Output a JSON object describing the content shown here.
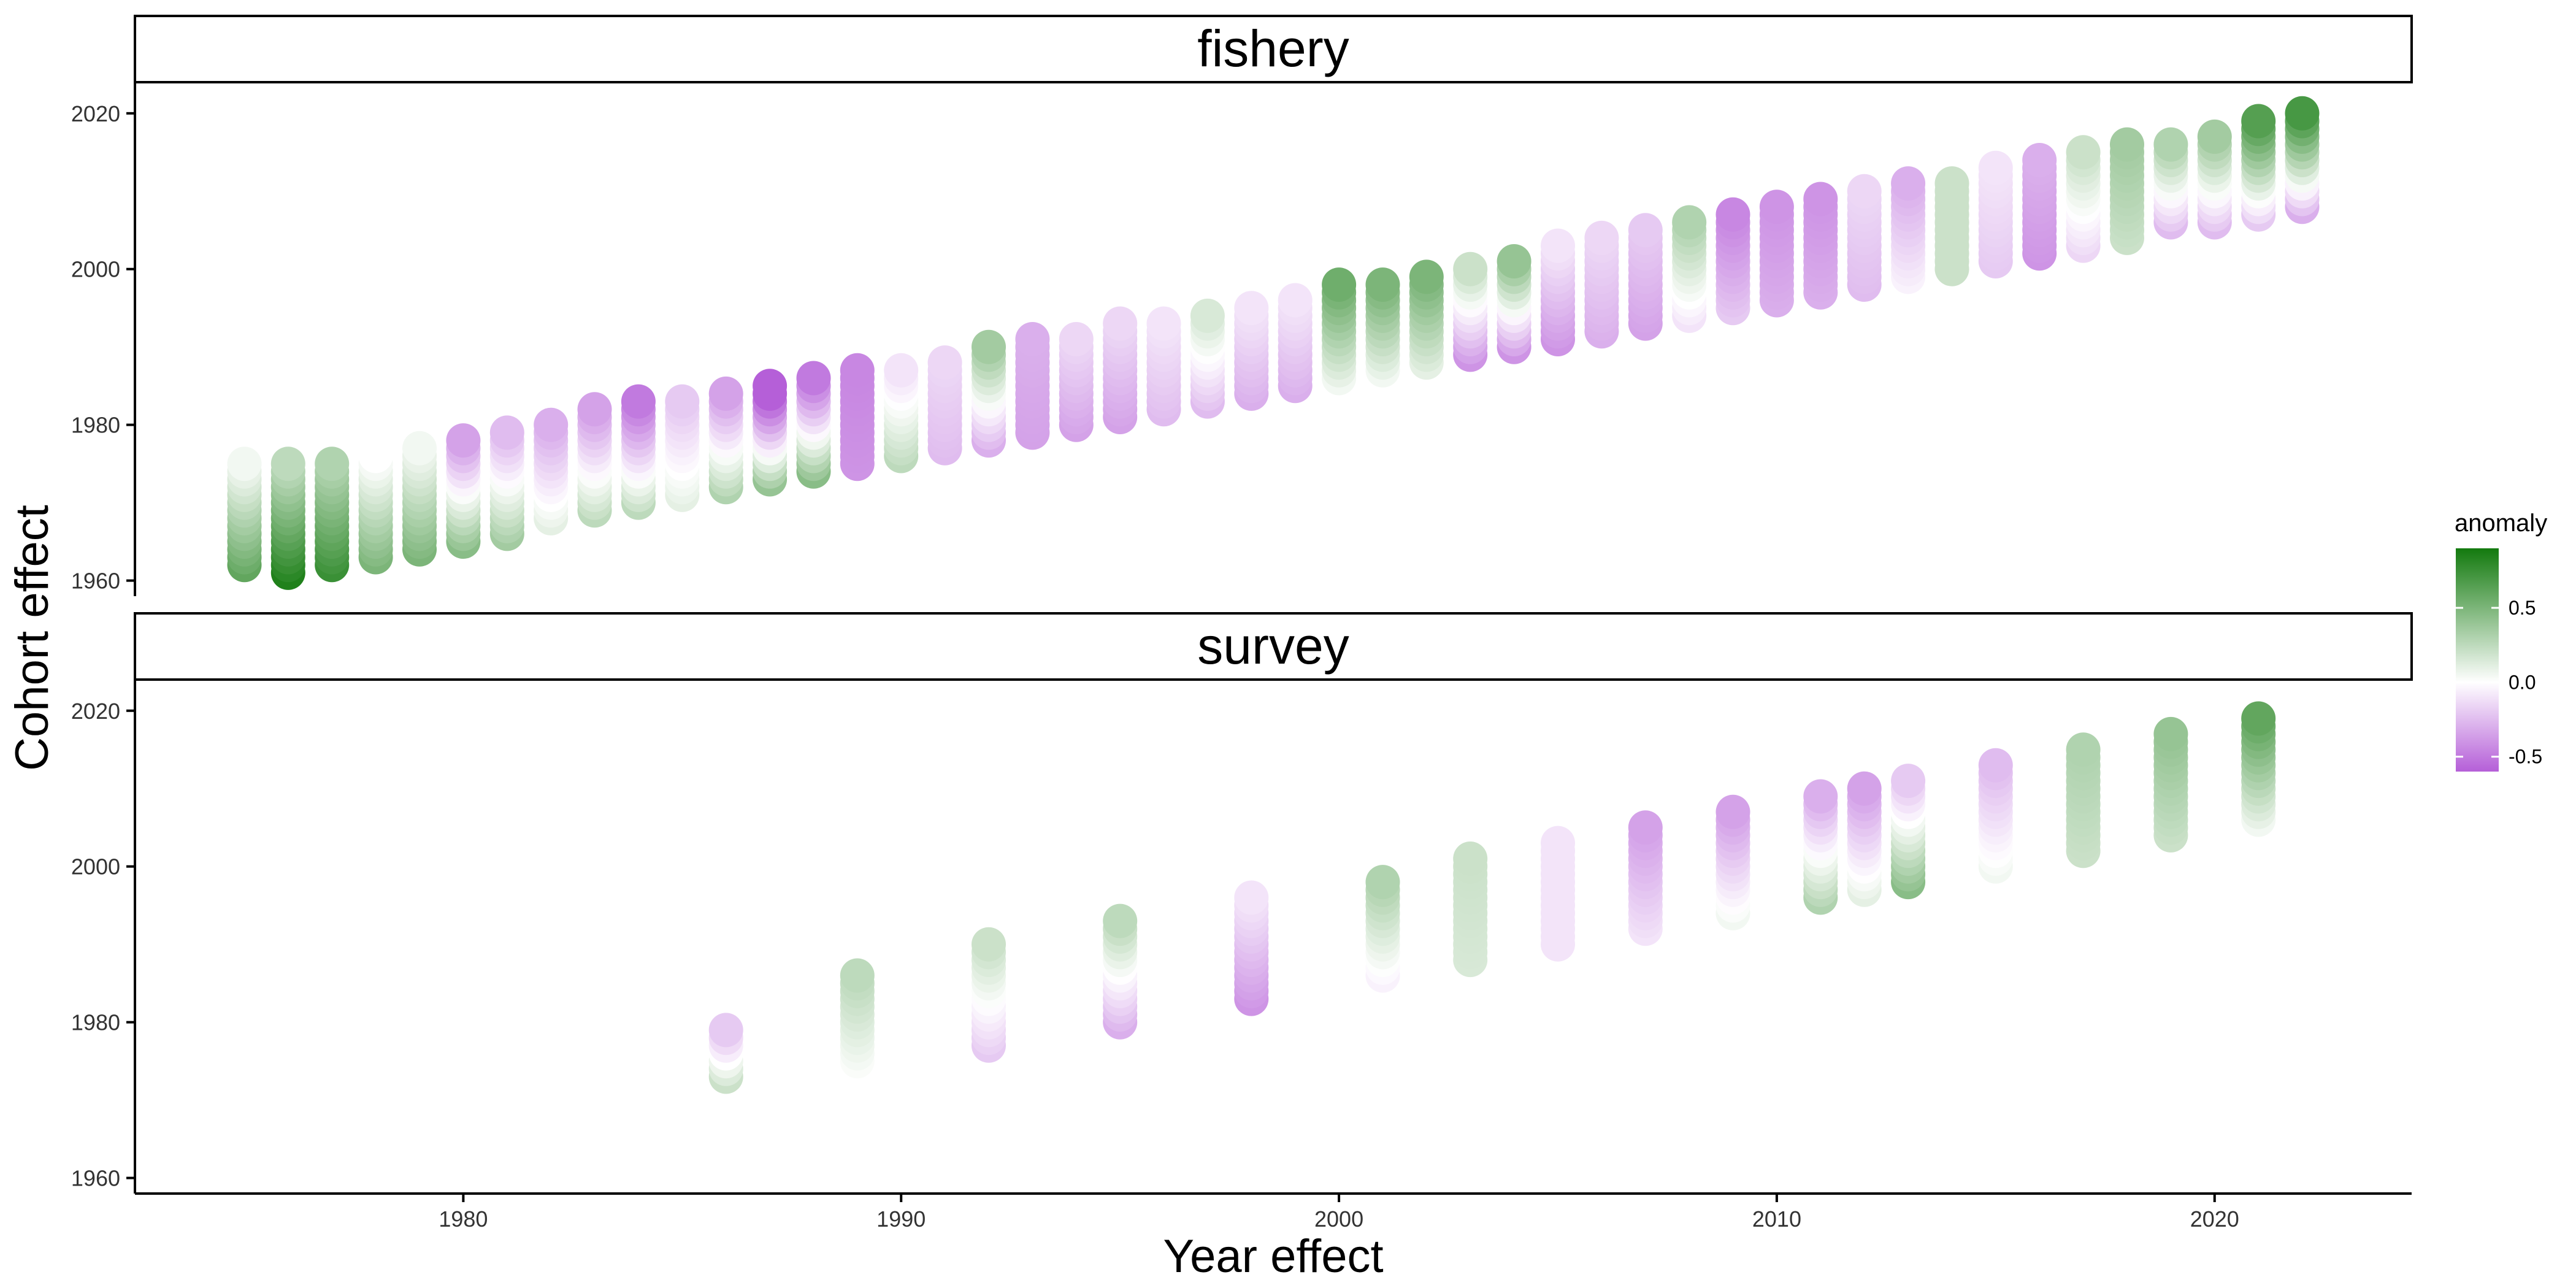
{
  "chart_data": {
    "type": "scatter",
    "xlabel": "Year effect",
    "ylabel": "Cohort effect",
    "xlim": [
      1972.5,
      2024.5
    ],
    "ylim": [
      1958,
      2024
    ],
    "x_ticks": [
      1980,
      1990,
      2000,
      2010,
      2020
    ],
    "y_ticks": [
      1960,
      1980,
      2000,
      2020
    ],
    "color_scale": {
      "title": "anomaly",
      "low": "#b55fd8",
      "mid": "#ffffff",
      "high": "#137a0e",
      "limits": [
        -0.6,
        0.9
      ],
      "ticks": [
        -0.5,
        0.0,
        0.5
      ],
      "tick_labels": [
        "-0.5",
        "0.0",
        "0.5"
      ]
    },
    "facets": [
      {
        "name": "fishery",
        "columns": [
          {
            "x": 1975,
            "c": [
              1962,
              1975
            ],
            "a": [
              0.6,
              0.05
            ]
          },
          {
            "x": 1976,
            "c": [
              1961,
              1975
            ],
            "a": [
              0.85,
              0.25
            ]
          },
          {
            "x": 1977,
            "c": [
              1962,
              1975
            ],
            "a": [
              0.75,
              0.3
            ]
          },
          {
            "x": 1978,
            "c": [
              1963,
              1976
            ],
            "a": [
              0.5,
              0.0
            ]
          },
          {
            "x": 1979,
            "c": [
              1964,
              1977
            ],
            "a": [
              0.5,
              0.05
            ]
          },
          {
            "x": 1980,
            "c": [
              1965,
              1978
            ],
            "a": [
              0.45,
              -0.35
            ]
          },
          {
            "x": 1981,
            "c": [
              1966,
              1979
            ],
            "a": [
              0.35,
              -0.25
            ]
          },
          {
            "x": 1982,
            "c": [
              1968,
              1980
            ],
            "a": [
              0.1,
              -0.3
            ]
          },
          {
            "x": 1983,
            "c": [
              1969,
              1982
            ],
            "a": [
              0.25,
              -0.35
            ]
          },
          {
            "x": 1984,
            "c": [
              1970,
              1983
            ],
            "a": [
              0.25,
              -0.5
            ]
          },
          {
            "x": 1985,
            "c": [
              1971,
              1983
            ],
            "a": [
              0.1,
              -0.2
            ]
          },
          {
            "x": 1986,
            "c": [
              1972,
              1984
            ],
            "a": [
              0.3,
              -0.35
            ]
          },
          {
            "x": 1987,
            "c": [
              1973,
              1985
            ],
            "a": [
              0.4,
              -0.7
            ]
          },
          {
            "x": 1988,
            "c": [
              1974,
              1986
            ],
            "a": [
              0.45,
              -0.5
            ]
          },
          {
            "x": 1989,
            "c": [
              1975,
              1987
            ],
            "a": [
              -0.4,
              -0.45
            ]
          },
          {
            "x": 1990,
            "c": [
              1976,
              1987
            ],
            "a": [
              0.25,
              -0.1
            ]
          },
          {
            "x": 1991,
            "c": [
              1977,
              1988
            ],
            "a": [
              -0.25,
              -0.15
            ]
          },
          {
            "x": 1992,
            "c": [
              1978,
              1990
            ],
            "a": [
              -0.3,
              0.35
            ]
          },
          {
            "x": 1993,
            "c": [
              1979,
              1991
            ],
            "a": [
              -0.35,
              -0.3
            ]
          },
          {
            "x": 1994,
            "c": [
              1980,
              1991
            ],
            "a": [
              -0.35,
              -0.15
            ]
          },
          {
            "x": 1995,
            "c": [
              1981,
              1993
            ],
            "a": [
              -0.35,
              -0.15
            ]
          },
          {
            "x": 1996,
            "c": [
              1982,
              1993
            ],
            "a": [
              -0.25,
              -0.1
            ]
          },
          {
            "x": 1997,
            "c": [
              1983,
              1994
            ],
            "a": [
              -0.25,
              0.15
            ]
          },
          {
            "x": 1998,
            "c": [
              1984,
              1995
            ],
            "a": [
              -0.3,
              -0.1
            ]
          },
          {
            "x": 1999,
            "c": [
              1985,
              1996
            ],
            "a": [
              -0.3,
              -0.1
            ]
          },
          {
            "x": 2000,
            "c": [
              1986,
              1998
            ],
            "a": [
              0.05,
              0.55
            ]
          },
          {
            "x": 2001,
            "c": [
              1987,
              1998
            ],
            "a": [
              0.05,
              0.5
            ]
          },
          {
            "x": 2002,
            "c": [
              1988,
              1999
            ],
            "a": [
              0.1,
              0.5
            ]
          },
          {
            "x": 2003,
            "c": [
              1989,
              2000
            ],
            "a": [
              -0.4,
              0.2
            ]
          },
          {
            "x": 2004,
            "c": [
              1990,
              2001
            ],
            "a": [
              -0.4,
              0.4
            ]
          },
          {
            "x": 2005,
            "c": [
              1991,
              2003
            ],
            "a": [
              -0.4,
              -0.1
            ]
          },
          {
            "x": 2006,
            "c": [
              1992,
              2004
            ],
            "a": [
              -0.3,
              -0.15
            ]
          },
          {
            "x": 2007,
            "c": [
              1993,
              2005
            ],
            "a": [
              -0.35,
              -0.2
            ]
          },
          {
            "x": 2008,
            "c": [
              1994,
              2006
            ],
            "a": [
              -0.1,
              0.3
            ]
          },
          {
            "x": 2009,
            "c": [
              1995,
              2007
            ],
            "a": [
              -0.2,
              -0.45
            ]
          },
          {
            "x": 2010,
            "c": [
              1996,
              2008
            ],
            "a": [
              -0.3,
              -0.4
            ]
          },
          {
            "x": 2011,
            "c": [
              1997,
              2009
            ],
            "a": [
              -0.3,
              -0.4
            ]
          },
          {
            "x": 2012,
            "c": [
              1998,
              2010
            ],
            "a": [
              -0.25,
              -0.15
            ]
          },
          {
            "x": 2013,
            "c": [
              1999,
              2011
            ],
            "a": [
              -0.05,
              -0.3
            ]
          },
          {
            "x": 2014,
            "c": [
              2000,
              2011
            ],
            "a": [
              0.2,
              0.2
            ]
          },
          {
            "x": 2015,
            "c": [
              2001,
              2013
            ],
            "a": [
              -0.2,
              -0.1
            ]
          },
          {
            "x": 2016,
            "c": [
              2002,
              2014
            ],
            "a": [
              -0.4,
              -0.3
            ]
          },
          {
            "x": 2017,
            "c": [
              2003,
              2015
            ],
            "a": [
              -0.15,
              0.2
            ]
          },
          {
            "x": 2018,
            "c": [
              2004,
              2016
            ],
            "a": [
              0.2,
              0.35
            ]
          },
          {
            "x": 2019,
            "c": [
              2006,
              2016
            ],
            "a": [
              -0.25,
              0.3
            ]
          },
          {
            "x": 2020,
            "c": [
              2006,
              2017
            ],
            "a": [
              -0.25,
              0.35
            ]
          },
          {
            "x": 2021,
            "c": [
              2007,
              2019
            ],
            "a": [
              -0.2,
              0.65
            ]
          },
          {
            "x": 2022,
            "c": [
              2008,
              2020
            ],
            "a": [
              -0.3,
              0.7
            ]
          }
        ]
      },
      {
        "name": "survey",
        "columns": [
          {
            "x": 1986,
            "c": [
              1973,
              1979
            ],
            "a": [
              0.2,
              -0.2
            ]
          },
          {
            "x": 1989,
            "c": [
              1974,
              1986
            ],
            "a": [
              0.0,
              0.25
            ]
          },
          {
            "x": 1992,
            "c": [
              1977,
              1990
            ],
            "a": [
              -0.2,
              0.2
            ]
          },
          {
            "x": 1995,
            "c": [
              1980,
              1993
            ],
            "a": [
              -0.3,
              0.25
            ]
          },
          {
            "x": 1998,
            "c": [
              1983,
              1996
            ],
            "a": [
              -0.4,
              -0.1
            ]
          },
          {
            "x": 2001,
            "c": [
              1986,
              1998
            ],
            "a": [
              -0.05,
              0.3
            ]
          },
          {
            "x": 2003,
            "c": [
              1988,
              2001
            ],
            "a": [
              0.15,
              0.2
            ]
          },
          {
            "x": 2005,
            "c": [
              1990,
              2003
            ],
            "a": [
              -0.1,
              -0.1
            ]
          },
          {
            "x": 2007,
            "c": [
              1992,
              2005
            ],
            "a": [
              -0.1,
              -0.35
            ]
          },
          {
            "x": 2009,
            "c": [
              1994,
              2007
            ],
            "a": [
              0.05,
              -0.35
            ]
          },
          {
            "x": 2011,
            "c": [
              1996,
              2009
            ],
            "a": [
              0.3,
              -0.3
            ]
          },
          {
            "x": 2012,
            "c": [
              1997,
              2010
            ],
            "a": [
              0.1,
              -0.35
            ]
          },
          {
            "x": 2013,
            "c": [
              1998,
              2011
            ],
            "a": [
              0.45,
              -0.2
            ]
          },
          {
            "x": 2015,
            "c": [
              2000,
              2013
            ],
            "a": [
              0.05,
              -0.25
            ]
          },
          {
            "x": 2017,
            "c": [
              2002,
              2015
            ],
            "a": [
              0.2,
              0.3
            ]
          },
          {
            "x": 2019,
            "c": [
              2004,
              2017
            ],
            "a": [
              0.2,
              0.4
            ]
          },
          {
            "x": 2021,
            "c": [
              2006,
              2019
            ],
            "a": [
              0.05,
              0.6
            ]
          }
        ]
      }
    ]
  }
}
